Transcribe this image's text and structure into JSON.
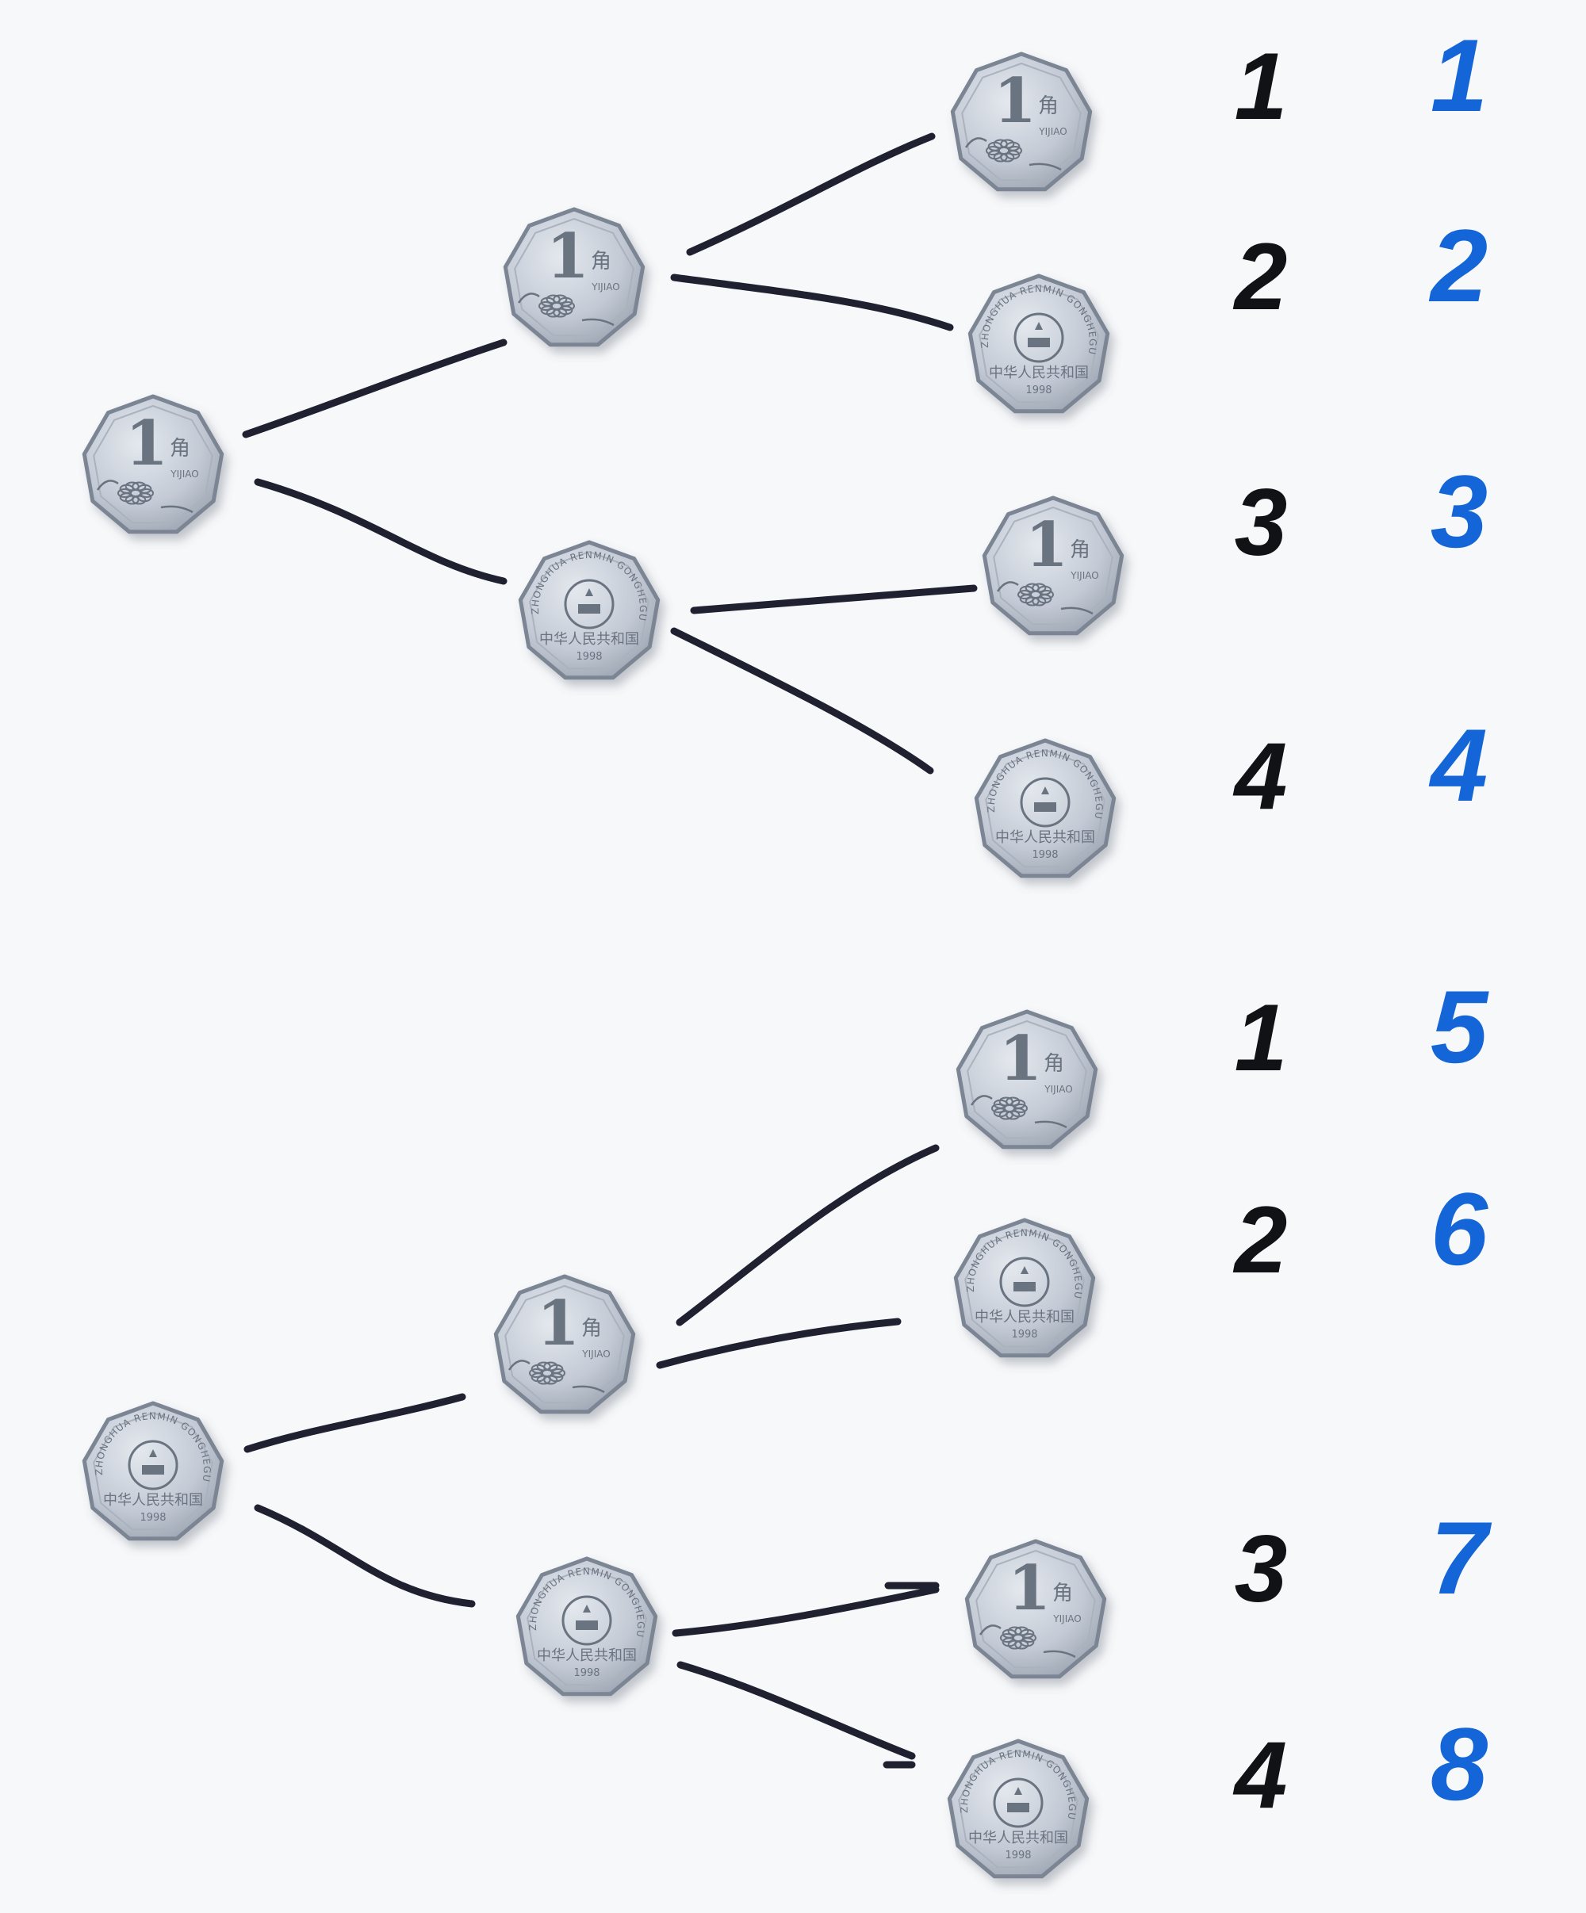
{
  "colors": {
    "paper": "#f7f8fa",
    "line": "#1f2130",
    "black_ink": "#111216",
    "blue_ink": "#1466d8",
    "coin_rim": "#7b8594",
    "coin_face": "#c9d0da",
    "coin_engrave": "#6b7380"
  },
  "coin_text": {
    "denomination": "1",
    "unit": "角",
    "pinyin": "YIJIAO",
    "country_cn": "中华人民共和国",
    "country_pinyin": "ZHONGHUA RENMIN GONGHEGUO",
    "year": "1998"
  },
  "trees": [
    {
      "root": "heads",
      "level1": [
        "heads",
        "tails"
      ],
      "level2": [
        "heads",
        "tails",
        "heads",
        "tails"
      ],
      "black_numbers": [
        "1",
        "2",
        "3",
        "4"
      ],
      "blue_numbers": [
        "1",
        "2",
        "3",
        "4"
      ]
    },
    {
      "root": "tails",
      "level1": [
        "heads",
        "tails"
      ],
      "level2": [
        "heads",
        "tails",
        "heads",
        "tails"
      ],
      "black_numbers": [
        "1",
        "2",
        "3",
        "4"
      ],
      "blue_numbers": [
        "5",
        "6",
        "7",
        "8"
      ]
    }
  ]
}
